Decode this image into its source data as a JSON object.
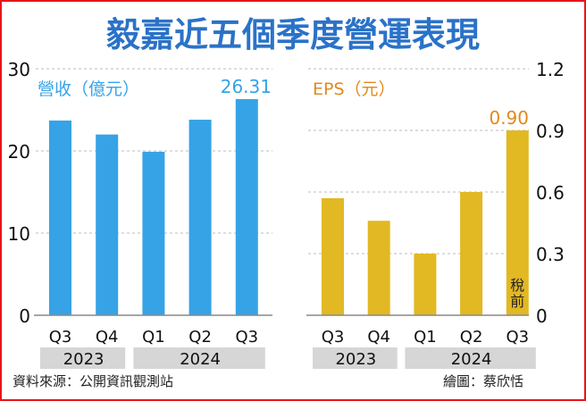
{
  "title": "毅嘉近五個季度營運表現",
  "source": "資料來源：公開資訊觀測站",
  "credit": "繪圖：蔡欣恬",
  "colors": {
    "title": "#2a72c8",
    "revenue": "#36a3e6",
    "eps": "#e2b823",
    "eps_label": "#e08a1e",
    "year_band": "#d6d6d6"
  },
  "chart_data": [
    {
      "type": "bar",
      "title": "營收（億元）",
      "categories": [
        "Q3",
        "Q4",
        "Q1",
        "Q2",
        "Q3"
      ],
      "years": [
        {
          "label": "2023",
          "span": 2
        },
        {
          "label": "2024",
          "span": 3
        }
      ],
      "values": [
        23.7,
        22.0,
        19.9,
        23.8,
        26.31
      ],
      "data_labels": [
        null,
        null,
        null,
        null,
        "26.31"
      ],
      "ylim": [
        0,
        30
      ],
      "yticks": [
        "0",
        "10",
        "20",
        "30"
      ],
      "yaxis_side": "left",
      "grid": true
    },
    {
      "type": "bar",
      "title": "EPS（元）",
      "categories": [
        "Q3",
        "Q4",
        "Q1",
        "Q2",
        "Q3"
      ],
      "years": [
        {
          "label": "2023",
          "span": 2
        },
        {
          "label": "2024",
          "span": 3
        }
      ],
      "values": [
        0.57,
        0.46,
        0.3,
        0.6,
        0.9
      ],
      "data_labels": [
        null,
        null,
        null,
        null,
        "0.90"
      ],
      "bar_annotation": {
        "index": 4,
        "text": "稅前"
      },
      "ylim": [
        0,
        1.2
      ],
      "yticks": [
        "0",
        "0.3",
        "0.6",
        "0.9",
        "1.2"
      ],
      "yaxis_side": "right",
      "grid": true
    }
  ]
}
